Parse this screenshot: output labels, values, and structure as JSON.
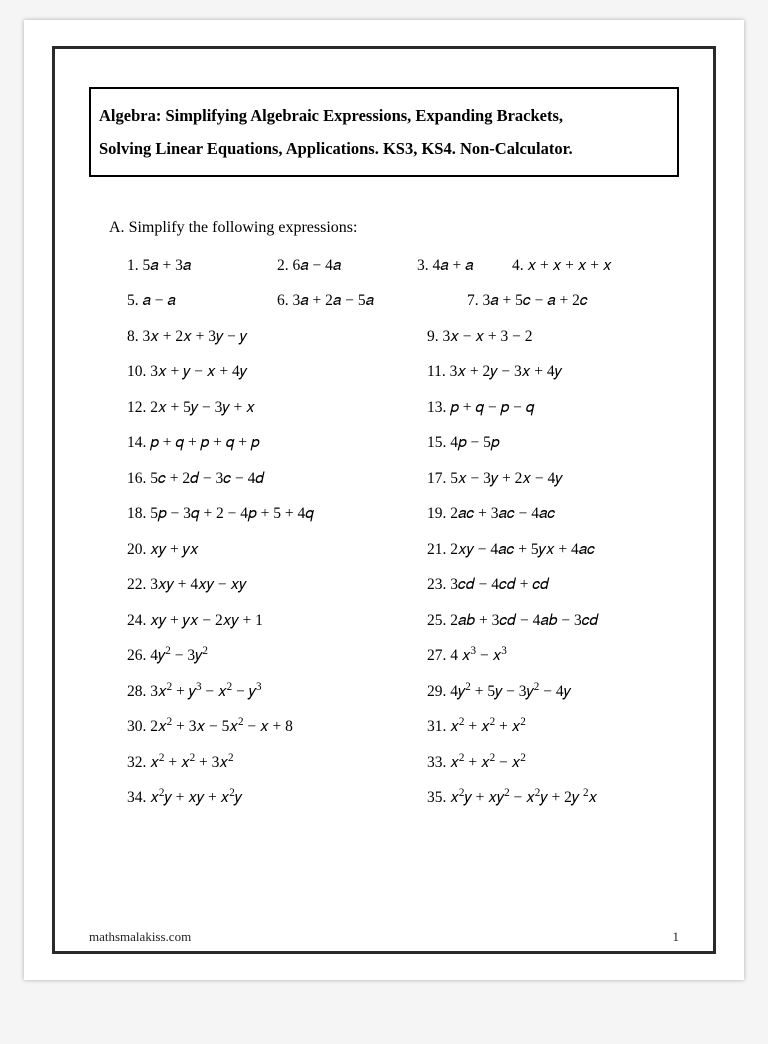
{
  "title": {
    "line1": "Algebra: Simplifying Algebraic Expressions, Expanding Brackets,",
    "line2": "Solving Linear Equations, Applications. KS3, KS4.  Non-Calculator."
  },
  "section": {
    "label": "A.",
    "text": "Simplify the following expressions:"
  },
  "problems": {
    "p1": "1. 5𝑎 + 3𝑎",
    "p2": "2.  6𝑎 − 4𝑎",
    "p3": "3.  4𝑎 + 𝑎",
    "p4": "4.  𝑥 + 𝑥 + 𝑥 + 𝑥",
    "p5": "5. 𝑎 − 𝑎",
    "p6": "6.  3𝑎 + 2𝑎 − 5𝑎",
    "p7": "7.   3𝑎 + 5𝑐 − 𝑎 + 2𝑐",
    "p8": "8.  3𝑥 + 2𝑥 + 3𝑦 − 𝑦",
    "p9": "9.  3𝑥 − 𝑥 + 3 − 2",
    "p10": "10. 3𝑥 + 𝑦 − 𝑥 + 4𝑦",
    "p11": "11. 3𝑥 + 2𝑦 − 3𝑥 + 4𝑦",
    "p12": "12. 2𝑥 + 5𝑦 − 3𝑦 + 𝑥",
    "p13": "13. 𝑝 + 𝑞 − 𝑝 − 𝑞",
    "p14": "14.  𝑝 + 𝑞 + 𝑝 + 𝑞 + 𝑝",
    "p15": "15. 4𝑝 − 5𝑝",
    "p16": "16. 5𝑐 + 2𝑑 − 3𝑐 − 4𝑑",
    "p17": "17.  5𝑥 − 3𝑦 + 2𝑥 − 4𝑦",
    "p18": "18. 5𝑝 − 3𝑞 + 2 − 4𝑝 + 5 + 4𝑞",
    "p19": "19.  2𝑎𝑐 + 3𝑎𝑐 − 4𝑎𝑐",
    "p20": "20.  𝑥𝑦 + 𝑦𝑥",
    "p21": "21. 2𝑥𝑦 − 4𝑎𝑐 + 5𝑦𝑥 + 4𝑎𝑐",
    "p22": "22. 3𝑥𝑦 + 4𝑥𝑦 − 𝑥𝑦",
    "p23": "23.  3𝑐𝑑 − 4𝑐𝑑 + 𝑐𝑑",
    "p24": "24. 𝑥𝑦 + 𝑦𝑥 − 2𝑥𝑦 + 1",
    "p25": "25.  2𝑎𝑏 + 3𝑐𝑑 − 4𝑎𝑏 − 3𝑐𝑑",
    "p26_html": "26. 4𝑦<sup>2</sup> − 3𝑦<sup>2</sup>",
    "p27_html": "27.  4 𝑥<sup>3</sup> −  𝑥<sup>3</sup>",
    "p28_html": "28. 3𝑥<sup>2</sup> + 𝑦<sup>3</sup> − 𝑥<sup>2</sup> − 𝑦<sup>3</sup>",
    "p29_html": "29. 4𝑦<sup>2</sup> + 5𝑦 − 3𝑦<sup>2</sup> − 4𝑦",
    "p30_html": "30.  2𝑥<sup>2</sup> + 3𝑥 − 5𝑥<sup>2</sup> − 𝑥 + 8",
    "p31_html": "31.  𝑥<sup>2</sup> + 𝑥<sup>2</sup> + 𝑥<sup>2</sup>",
    "p32_html": "32.  𝑥<sup>2</sup> + 𝑥<sup>2</sup> + 3𝑥<sup>2</sup>",
    "p33_html": "33.  𝑥<sup>2</sup> + 𝑥<sup>2</sup> − 𝑥<sup>2</sup>",
    "p34_html": "34.  𝑥<sup>2</sup>𝑦 + 𝑥𝑦 + 𝑥<sup>2</sup>𝑦",
    "p35_html": "35.   𝑥<sup>2</sup>𝑦 + 𝑥𝑦<sup>2</sup> − 𝑥<sup>2</sup>𝑦 + 2𝑦 <sup>2</sup>𝑥"
  },
  "footer": {
    "site": "mathsmalakiss.com",
    "page": "1"
  },
  "style": {
    "page_bg": "#ffffff",
    "frame_border_color": "#2a2a2a",
    "title_border_color": "#000000",
    "body_font": "Times New Roman",
    "math_font": "Cambria Math",
    "title_fontsize_pt": 12.5,
    "body_fontsize_pt": 12,
    "footer_fontsize_pt": 10
  }
}
